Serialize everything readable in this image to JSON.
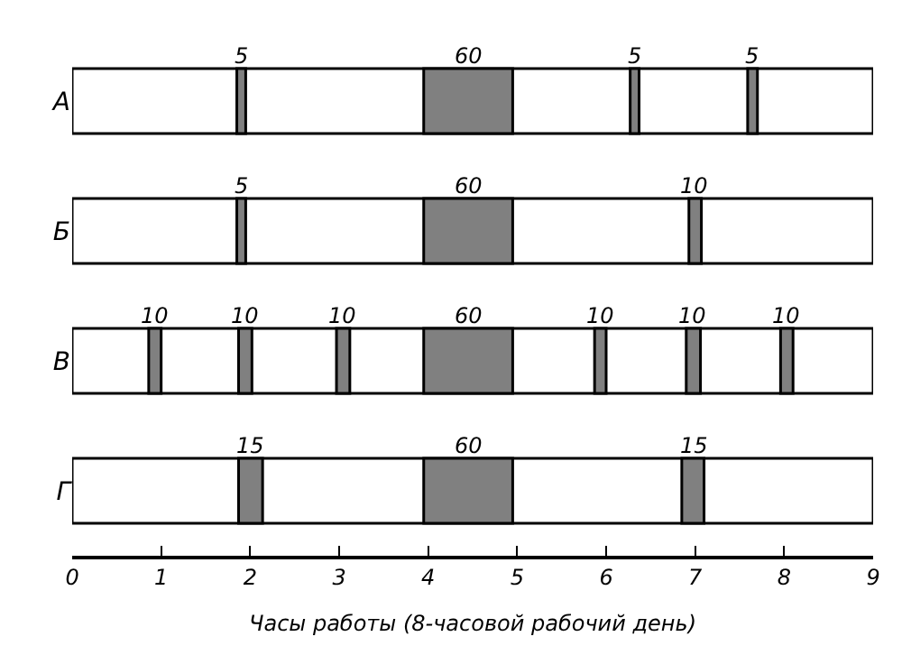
{
  "chart_data": {
    "type": "bar",
    "orientation": "horizontal",
    "categories": [
      "А",
      "Б",
      "В",
      "Г"
    ],
    "xlabel": "Часы работы (8-часовой рабочий день)",
    "xlim": [
      0,
      9
    ],
    "xticks": [
      0,
      1,
      2,
      3,
      4,
      5,
      6,
      7,
      8,
      9
    ],
    "series": [
      {
        "color": "#ffffff",
        "base": [
          0,
          0,
          0,
          0
        ],
        "values": [
          9,
          9,
          9,
          9
        ]
      },
      {
        "color": "#808080",
        "base": [
          1.85,
          1.85,
          0.86,
          1.87
        ],
        "values": [
          0.1,
          0.1,
          0.14,
          0.27
        ]
      },
      {
        "color": "#808080",
        "base": [
          3.95,
          3.95,
          1.87,
          3.95
        ],
        "values": [
          1.0,
          1.0,
          0.15,
          1.0
        ]
      },
      {
        "color": "#808080",
        "base": [
          6.27,
          6.93,
          2.97,
          6.85
        ],
        "values": [
          0.1,
          0.14,
          0.15,
          0.25
        ]
      },
      {
        "color": "#808080",
        "base": [
          7.59,
          null,
          3.95,
          null
        ],
        "values": [
          0.11,
          null,
          1.0,
          null
        ]
      },
      {
        "color": "#808080",
        "base": [
          null,
          null,
          5.87,
          null
        ],
        "values": [
          null,
          null,
          0.13,
          null
        ]
      },
      {
        "color": "#808080",
        "base": [
          null,
          null,
          6.9,
          null
        ],
        "values": [
          null,
          null,
          0.16,
          null
        ]
      },
      {
        "color": "#808080",
        "base": [
          null,
          null,
          7.96,
          null
        ],
        "values": [
          null,
          null,
          0.14,
          null
        ]
      }
    ],
    "annotations": [
      {
        "text": "5",
        "x": 1.85,
        "y": "А"
      },
      {
        "text": "60",
        "x": 3.95,
        "y": "А"
      },
      {
        "text": "5",
        "x": 6.27,
        "y": "А"
      },
      {
        "text": "5",
        "x": 7.59,
        "y": "А"
      },
      {
        "text": "5",
        "x": 1.85,
        "y": "Б"
      },
      {
        "text": "60",
        "x": 3.95,
        "y": "Б"
      },
      {
        "text": "10",
        "x": 6.93,
        "y": "Б"
      },
      {
        "text": "10",
        "x": 0.86,
        "y": "В"
      },
      {
        "text": "10",
        "x": 1.87,
        "y": "В"
      },
      {
        "text": "10",
        "x": 2.97,
        "y": "В"
      },
      {
        "text": "60",
        "x": 3.95,
        "y": "В"
      },
      {
        "text": "10",
        "x": 5.87,
        "y": "В"
      },
      {
        "text": "10",
        "x": 6.9,
        "y": "В"
      },
      {
        "text": "10",
        "x": 7.96,
        "y": "В"
      },
      {
        "text": "15",
        "x": 1.87,
        "y": "Г"
      },
      {
        "text": "60",
        "x": 3.95,
        "y": "Г"
      },
      {
        "text": "15",
        "x": 6.85,
        "y": "Г"
      }
    ]
  }
}
